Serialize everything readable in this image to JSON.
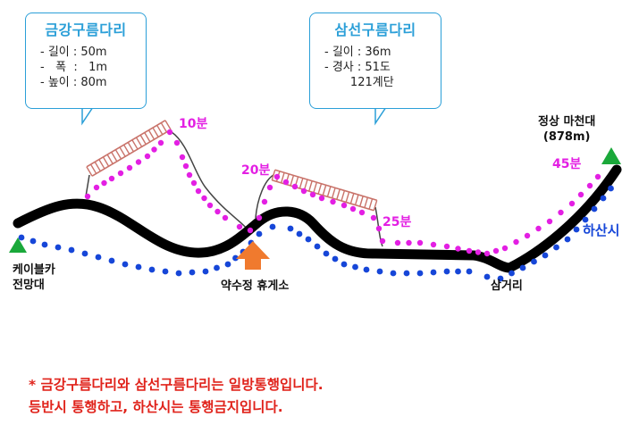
{
  "callouts": {
    "left": {
      "title": "금강구름다리",
      "specs": [
        "- 길이 : 50m",
        "-   폭  :   1m",
        "- 높이 : 80m"
      ]
    },
    "right": {
      "title": "삼선구름다리",
      "specs": [
        "- 길이 : 36m",
        "- 경사 : 51도",
        "       121계단"
      ]
    }
  },
  "places": {
    "summit_name": "정상 마천대",
    "summit_elevation": "(878m)",
    "cablecar_line1": "케이블카",
    "cablecar_line2": "전망대",
    "rest_area": "약수정 휴게소",
    "junction": "삼거리"
  },
  "times": {
    "t10": "10분",
    "t20": "20분",
    "t25": "25분",
    "t45": "45분"
  },
  "route_labels": {
    "descent": "하산시"
  },
  "notice": {
    "line1": "* 금강구름다리와 삼선구름다리는 일방통행입니다.",
    "line2": "  등반시 통행하고, 하산시는 통행금지입니다."
  },
  "colors": {
    "ascent_dots": "#e31fe3",
    "descent_dots": "#1646d8",
    "trail": "#000000",
    "callout_border": "#2b9fd8",
    "start_end_markers": "#1aa83a",
    "rest_area_arrow": "#f07a2e",
    "notice_text": "#e0231b",
    "bridge": "#c9736a"
  }
}
